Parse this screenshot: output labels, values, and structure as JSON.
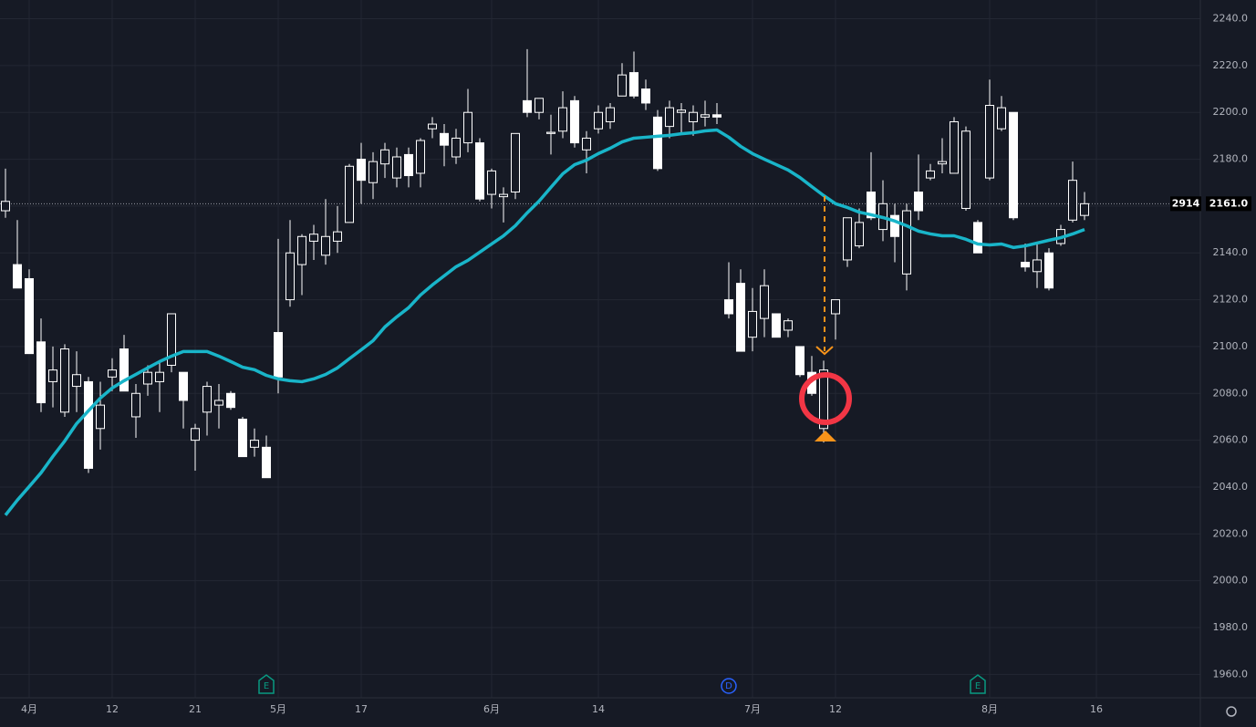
{
  "chart_data": {
    "type": "candlestick",
    "categories": [
      null,
      null,
      "4月",
      null,
      null,
      null,
      null,
      null,
      null,
      "12",
      null,
      null,
      null,
      null,
      null,
      null,
      "21",
      null,
      null,
      null,
      null,
      null,
      null,
      "5月",
      null,
      null,
      null,
      null,
      null,
      null,
      "17",
      null,
      null,
      null,
      null,
      null,
      null,
      null,
      null,
      null,
      null,
      "6月",
      null,
      null,
      null,
      null,
      null,
      null,
      null,
      null,
      "14",
      null,
      null,
      null,
      null,
      null,
      null,
      null,
      null,
      null,
      null,
      null,
      null,
      "7月",
      null,
      null,
      null,
      null,
      null,
      null,
      "12",
      null,
      null,
      null,
      null,
      null,
      null,
      null,
      null,
      null,
      null,
      null,
      null,
      "8月",
      null,
      null,
      null,
      null,
      null,
      null,
      null,
      null,
      "16"
    ],
    "open": [
      2158,
      2135,
      2129,
      2102,
      2085,
      2072,
      2083,
      2085,
      2065,
      2087,
      2099,
      2070,
      2084,
      2085,
      2092,
      2089,
      2060,
      2072,
      2075,
      2080,
      2069,
      2057,
      2057,
      2106,
      2120,
      2135,
      2145,
      2139,
      2145,
      2153,
      2180,
      2170,
      2178,
      2172,
      2182,
      2174,
      2193,
      2191,
      2181,
      2187,
      2187,
      2165,
      2164,
      2166,
      2205,
      2200,
      2191,
      2192,
      2205,
      2184,
      2193,
      2196,
      2207,
      2217,
      2210,
      2198,
      2194,
      2200,
      2196,
      2198,
      2199,
      2120,
      2127,
      2104,
      2112,
      2114,
      2107,
      2100,
      2089,
      2065,
      2114,
      2137,
      2143,
      2166,
      2150,
      2156,
      2131,
      2166,
      2172,
      2178,
      2174,
      2159,
      2153,
      2172,
      2193,
      2200,
      2136,
      2132,
      2140,
      2144,
      2154,
      2156,
      null
    ],
    "high": [
      2176,
      2154,
      2133,
      2112,
      2100,
      2101,
      2098,
      2087,
      2085,
      2095,
      2105,
      2084,
      2092,
      2094,
      2114,
      2089,
      2067,
      2085,
      2084,
      2081,
      2070,
      2065,
      2062,
      2146,
      2154,
      2148,
      2152,
      2163,
      2160,
      2178,
      2187,
      2183,
      2187,
      2185,
      2185,
      2189,
      2198,
      2195,
      2193,
      2210,
      2189,
      2176,
      2168,
      2191,
      2227,
      2206,
      2199,
      2209,
      2207,
      2192,
      2203,
      2204,
      2221,
      2226,
      2214,
      2201,
      2205,
      2204,
      2203,
      2205,
      2204,
      2136,
      2133,
      2125,
      2133,
      2114,
      2112,
      2100,
      2096,
      2094,
      2120,
      2155,
      2159,
      2183,
      2171,
      2161,
      2161,
      2182,
      2178,
      2189,
      2198,
      2194,
      2154,
      2214,
      2207,
      2200,
      2144,
      2144,
      2142,
      2152,
      2179,
      2166,
      null
    ],
    "low": [
      2155,
      2125,
      2097,
      2072,
      2074,
      2070,
      2072,
      2046,
      2056,
      2081,
      2081,
      2061,
      2079,
      2072,
      2089,
      2065,
      2047,
      2062,
      2065,
      2073,
      2053,
      2053,
      2044,
      2080,
      2117,
      2122,
      2137,
      2135,
      2140,
      2153,
      2161,
      2163,
      2172,
      2168,
      2168,
      2168,
      2189,
      2177,
      2178,
      2183,
      2162,
      2159,
      2153,
      2163,
      2198,
      2197,
      2182,
      2189,
      2185,
      2174,
      2191,
      2193,
      2207,
      2206,
      2201,
      2175,
      2189,
      2191,
      2190,
      2194,
      2195,
      2112,
      2098,
      2098,
      2104,
      2104,
      2104,
      2087,
      2079,
      2059,
      2103,
      2134,
      2142,
      2154,
      2145,
      2136,
      2124,
      2154,
      2171,
      2174,
      2174,
      2158,
      2140,
      2171,
      2192,
      2154,
      2132,
      2125,
      2124,
      2143,
      2153,
      2154,
      null
    ],
    "close": [
      2162,
      2125,
      2097,
      2076,
      2090,
      2099,
      2088,
      2048,
      2075,
      2090,
      2081,
      2080,
      2089,
      2089,
      2114,
      2077,
      2065,
      2083,
      2077,
      2074,
      2053,
      2060,
      2044,
      2087,
      2140,
      2147,
      2148,
      2147,
      2149,
      2177,
      2171,
      2179,
      2184,
      2181,
      2173,
      2188,
      2195,
      2186,
      2189,
      2200,
      2163,
      2175,
      2165,
      2191,
      2200,
      2206,
      2191.5,
      2202,
      2187,
      2189,
      2200,
      2202,
      2216,
      2207,
      2204,
      2176,
      2202,
      2201,
      2200,
      2199,
      2198,
      2114,
      2098,
      2115,
      2126,
      2104,
      2111,
      2088,
      2080,
      2090,
      2120,
      2155,
      2153,
      2155,
      2161,
      2147,
      2158,
      2158,
      2175,
      2179,
      2196,
      2192,
      2140,
      2203,
      2202,
      2155,
      2134,
      2137,
      2125,
      2150,
      2171,
      2161,
      null
    ],
    "ma": {
      "color": "#19b5c9",
      "values": [
        2028,
        2034.4,
        2040.2,
        2046.1,
        2053.1,
        2059.7,
        2067.1,
        2072.6,
        2078,
        2082.3,
        2085.4,
        2088.1,
        2090.9,
        2093.6,
        2095.9,
        2097.9,
        2097.9,
        2097.9,
        2095.9,
        2093.6,
        2091.2,
        2090.1,
        2087.7,
        2086.2,
        2085.4,
        2085,
        2086.2,
        2088.1,
        2090.9,
        2094.8,
        2098.6,
        2102.5,
        2108.4,
        2112.7,
        2116.6,
        2122,
        2126.3,
        2130.2,
        2134.1,
        2136.8,
        2140.3,
        2143.8,
        2147.3,
        2151.6,
        2157.1,
        2162.1,
        2168,
        2173.8,
        2177.7,
        2179.6,
        2182.4,
        2184.7,
        2187.4,
        2189,
        2189.4,
        2189.8,
        2190.2,
        2190.9,
        2191.3,
        2192.1,
        2192.5,
        2189.4,
        2185.5,
        2182.4,
        2180,
        2177.7,
        2175.4,
        2172.2,
        2168.3,
        2164.5,
        2161,
        2159.4,
        2157.4,
        2156.3,
        2155.1,
        2153.6,
        2151.6,
        2149.3,
        2148.1,
        2147.3,
        2147.3,
        2145.8,
        2143.8,
        2143.4,
        2143.8,
        2142.3,
        2143,
        2144.2,
        2145.4,
        2146.5,
        2148.1,
        2150,
        null
      ]
    },
    "ylim": [
      1950,
      2248
    ],
    "yticks": [
      {
        "value": 1960,
        "label": "1960.0"
      },
      {
        "value": 1980,
        "label": "1980.0"
      },
      {
        "value": 2000,
        "label": "2000.0"
      },
      {
        "value": 2020,
        "label": "2020.0"
      },
      {
        "value": 2040,
        "label": "2040.0"
      },
      {
        "value": 2060,
        "label": "2060.0"
      },
      {
        "value": 2080,
        "label": "2080.0"
      },
      {
        "value": 2100,
        "label": "2100.0"
      },
      {
        "value": 2120,
        "label": "2120.0"
      },
      {
        "value": 2140,
        "label": "2140.0"
      },
      {
        "value": 2160,
        "label": "2160.0"
      },
      {
        "value": 2180,
        "label": "2180.0"
      },
      {
        "value": 2200,
        "label": "2200.0"
      },
      {
        "value": 2220,
        "label": "2220.0"
      },
      {
        "value": 2240,
        "label": "2240.0"
      }
    ],
    "last_price": {
      "value": 2161,
      "label": "2161.0"
    },
    "badge": "2914",
    "events": [
      {
        "label": "E",
        "at": 22
      },
      {
        "label": "D",
        "at": 61
      },
      {
        "label": "E",
        "at": 82
      }
    ],
    "grid": true
  }
}
